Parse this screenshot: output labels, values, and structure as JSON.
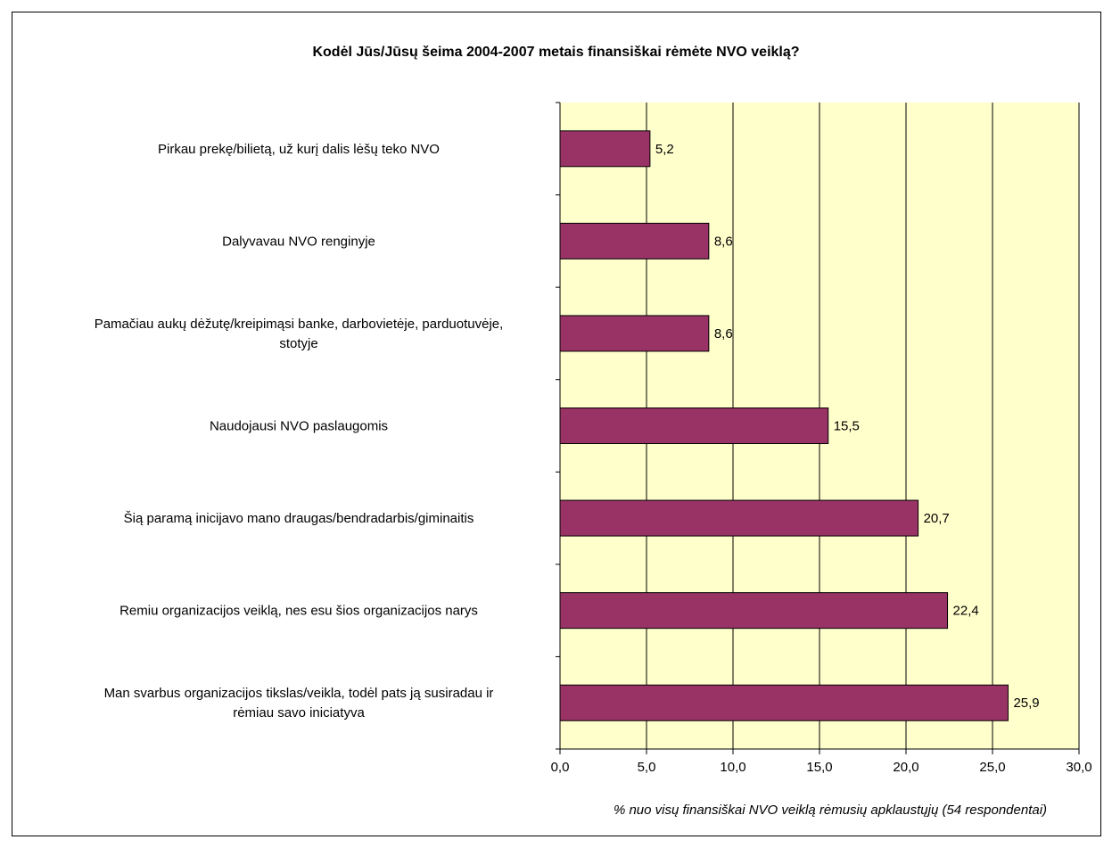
{
  "chart_data": {
    "type": "bar",
    "orientation": "horizontal",
    "title": "Kodėl Jūs/Jūsų šeima 2004-2007 metais finansiškai rėmėte NVO veiklą?",
    "xlabel": "% nuo visų finansiškai NVO veiklą rėmusių apklaustųjų (54 respondentai)",
    "ylabel": "",
    "categories": [
      [
        "Pirkau prekę/bilietą, už kurį dalis lėšų teko NVO"
      ],
      [
        "Dalyvavau NVO renginyje"
      ],
      [
        "Pamačiau aukų dėžutę/kreipimąsi banke, darbovietėje, parduotuvėje,",
        "stotyje"
      ],
      [
        "Naudojausi NVO paslaugomis"
      ],
      [
        "Šią paramą inicijavo mano draugas/bendradarbis/giminaitis"
      ],
      [
        "Remiu organizacijos veiklą, nes esu šios organizacijos narys"
      ],
      [
        "Man svarbus organizacijos tikslas/veikla, todėl pats ją susiradau ir",
        "rėmiau savo iniciatyva"
      ]
    ],
    "values": [
      5.2,
      8.6,
      8.6,
      15.5,
      20.7,
      22.4,
      25.9
    ],
    "value_labels": [
      "5,2",
      "8,6",
      "8,6",
      "15,5",
      "20,7",
      "22,4",
      "25,9"
    ],
    "xlim": [
      0,
      30
    ],
    "xticks": [
      0,
      5,
      10,
      15,
      20,
      25,
      30
    ],
    "xtick_labels": [
      "0,0",
      "5,0",
      "10,0",
      "15,0",
      "20,0",
      "25,0",
      "30,0"
    ],
    "grid": "vertical",
    "colors": {
      "bar": "#993366",
      "plot_background": "#FFFFCC",
      "gridline": "#000000"
    }
  }
}
